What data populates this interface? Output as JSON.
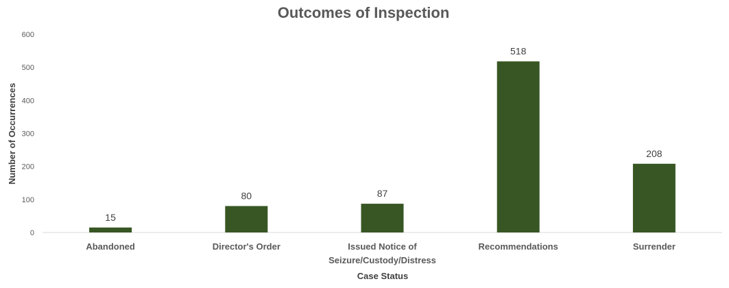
{
  "chart_data": {
    "type": "bar",
    "title": "Outcomes of Inspection",
    "xlabel": "Case Status",
    "ylabel": "Number of Occurrences",
    "categories": [
      [
        "Abandoned"
      ],
      [
        "Director's Order"
      ],
      [
        "Issued Notice of",
        "Seizure/Custody/Distress"
      ],
      [
        "Recommendations"
      ],
      [
        "Surrender"
      ]
    ],
    "values": [
      15,
      80,
      87,
      518,
      208
    ],
    "ylim": [
      0,
      600
    ],
    "yticks": [
      0,
      100,
      200,
      300,
      400,
      500,
      600
    ],
    "grid": false,
    "legend": "none",
    "bar_color": "#375623",
    "data_labels": true
  }
}
